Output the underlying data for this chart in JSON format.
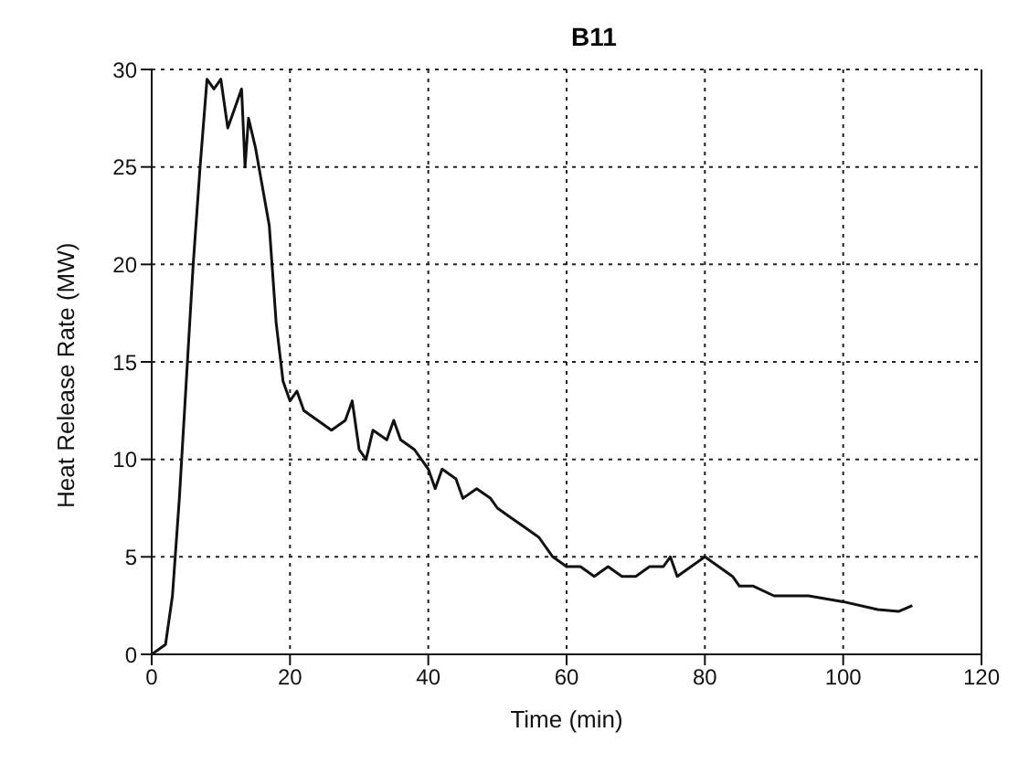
{
  "chart_data": {
    "type": "line",
    "title": "B11",
    "xlabel": "Time (min)",
    "ylabel": "Heat Release Rate (MW)",
    "x": [
      0,
      2,
      3,
      4,
      5,
      6,
      7,
      8,
      9,
      10,
      11,
      12,
      13,
      13.5,
      14,
      15,
      17,
      18,
      19,
      20,
      21,
      22,
      24,
      26,
      28,
      29,
      30,
      31,
      32,
      34,
      35,
      36,
      38,
      40,
      41,
      42,
      44,
      45,
      47,
      49,
      50,
      52,
      54,
      56,
      58,
      60,
      62,
      64,
      66,
      68,
      70,
      72,
      74,
      75,
      76,
      78,
      80,
      82,
      84,
      85,
      87,
      90,
      95,
      100,
      105,
      108,
      110
    ],
    "series": [
      {
        "color": "#111111",
        "values": [
          0,
          0.5,
          3,
          8,
          14,
          20,
          25,
          29.5,
          29,
          29.5,
          27,
          28,
          29,
          25,
          27.5,
          26,
          22,
          17,
          14,
          13,
          13.5,
          12.5,
          12,
          11.5,
          12,
          13,
          10.5,
          10,
          11.5,
          11,
          12,
          11,
          10.5,
          9.5,
          8.5,
          9.5,
          9,
          8,
          8.5,
          8,
          7.5,
          7,
          6.5,
          6,
          5,
          4.5,
          4.5,
          4,
          4.5,
          4,
          4,
          4.5,
          4.5,
          5,
          4,
          4.5,
          5,
          4.5,
          4,
          3.5,
          3.5,
          3,
          3,
          2.7,
          2.3,
          2.2,
          2.5
        ]
      }
    ],
    "xlim": [
      0,
      120
    ],
    "xticks": [
      0,
      20,
      40,
      60,
      80,
      100,
      120
    ],
    "ylim": [
      0,
      30
    ],
    "yticks": [
      0,
      5,
      10,
      15,
      20,
      25,
      30
    ],
    "grid": true,
    "marker": "none",
    "line_style": "solid"
  }
}
